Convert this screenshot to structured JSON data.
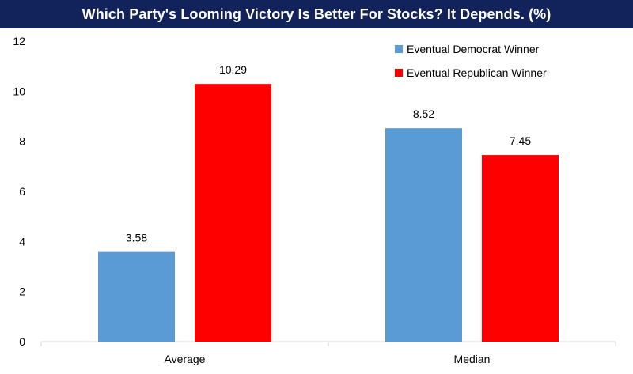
{
  "chart_data": {
    "type": "bar",
    "title": "Which Party's Looming Victory Is Better For Stocks? It Depends. (%)",
    "categories": [
      "Average",
      "Median"
    ],
    "series": [
      {
        "name": "Eventual Democrat Winner",
        "values": [
          3.58,
          8.52
        ],
        "color": "#5b9bd5"
      },
      {
        "name": "Eventual Republican Winner",
        "values": [
          10.29,
          7.45
        ],
        "color": "#ff0000"
      }
    ],
    "data_labels": [
      [
        "3.58",
        "8.52"
      ],
      [
        "10.29",
        "7.45"
      ]
    ],
    "ylim": [
      0,
      12
    ],
    "yticks": [
      0,
      2,
      4,
      6,
      8,
      10,
      12
    ],
    "xlabel": "",
    "ylabel": "",
    "grid": false,
    "legend_position": "top-right"
  }
}
